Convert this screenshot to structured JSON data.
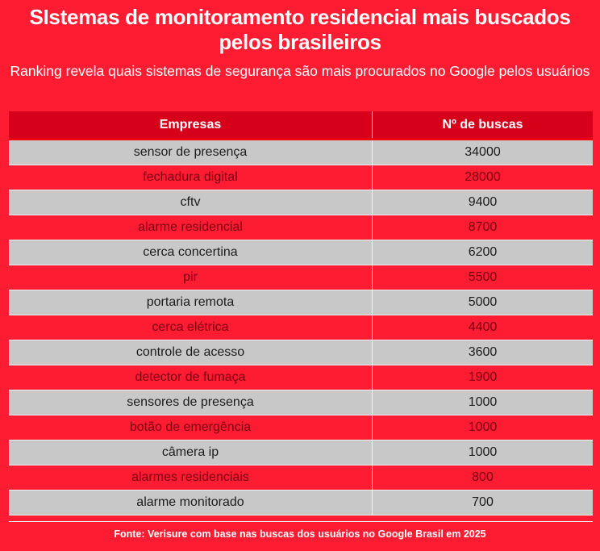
{
  "header": {
    "title": "SIstemas de monitoramento residencial mais buscados pelos brasileiros",
    "subtitle": "Ranking revela quais sistemas de segurança são mais procurados no Google pelos usuários"
  },
  "table": {
    "columns": [
      "Empresas",
      "Nº de buscas"
    ],
    "rows": [
      {
        "name": "sensor de presença",
        "value": "34000"
      },
      {
        "name": "fechadura digital",
        "value": "28000"
      },
      {
        "name": "cftv",
        "value": "9400"
      },
      {
        "name": "alarme residencial",
        "value": "8700"
      },
      {
        "name": "cerca concertina",
        "value": "6200"
      },
      {
        "name": "pir",
        "value": "5500"
      },
      {
        "name": "portaria remota",
        "value": "5000"
      },
      {
        "name": "cerca elétrica",
        "value": "4400"
      },
      {
        "name": "controle de acesso",
        "value": "3600"
      },
      {
        "name": "detector de fumaça",
        "value": "1900"
      },
      {
        "name": "sensores de presença",
        "value": "1000"
      },
      {
        "name": "botão de emergência",
        "value": "1000"
      },
      {
        "name": "câmera ip",
        "value": "1000"
      },
      {
        "name": "alarmes residenciais",
        "value": "800"
      },
      {
        "name": "alarme monitorado",
        "value": "700"
      }
    ]
  },
  "footer": {
    "source": "Fonte: Verisure com base nas buscas dos usuários no Google Brasil em 2025"
  },
  "colors": {
    "background": "#fe1c32",
    "header_row": "#d7001a",
    "gray_row": "#c8c8c8",
    "red_row_text": "#7a0010"
  },
  "chart_data": {
    "type": "table",
    "title": "SIstemas de monitoramento residencial mais buscados pelos brasileiros",
    "subtitle": "Ranking revela quais sistemas de segurança são mais procurados no Google pelos usuários",
    "columns": [
      "Empresas",
      "Nº de buscas"
    ],
    "categories": [
      "sensor de presença",
      "fechadura digital",
      "cftv",
      "alarme residencial",
      "cerca concertina",
      "pir",
      "portaria remota",
      "cerca elétrica",
      "controle de acesso",
      "detector de fumaça",
      "sensores de presença",
      "botão de emergência",
      "câmera ip",
      "alarmes residenciais",
      "alarme monitorado"
    ],
    "values": [
      34000,
      28000,
      9400,
      8700,
      6200,
      5500,
      5000,
      4400,
      3600,
      1900,
      1000,
      1000,
      1000,
      800,
      700
    ],
    "source": "Fonte: Verisure com base nas buscas dos usuários no Google Brasil em 2025"
  }
}
